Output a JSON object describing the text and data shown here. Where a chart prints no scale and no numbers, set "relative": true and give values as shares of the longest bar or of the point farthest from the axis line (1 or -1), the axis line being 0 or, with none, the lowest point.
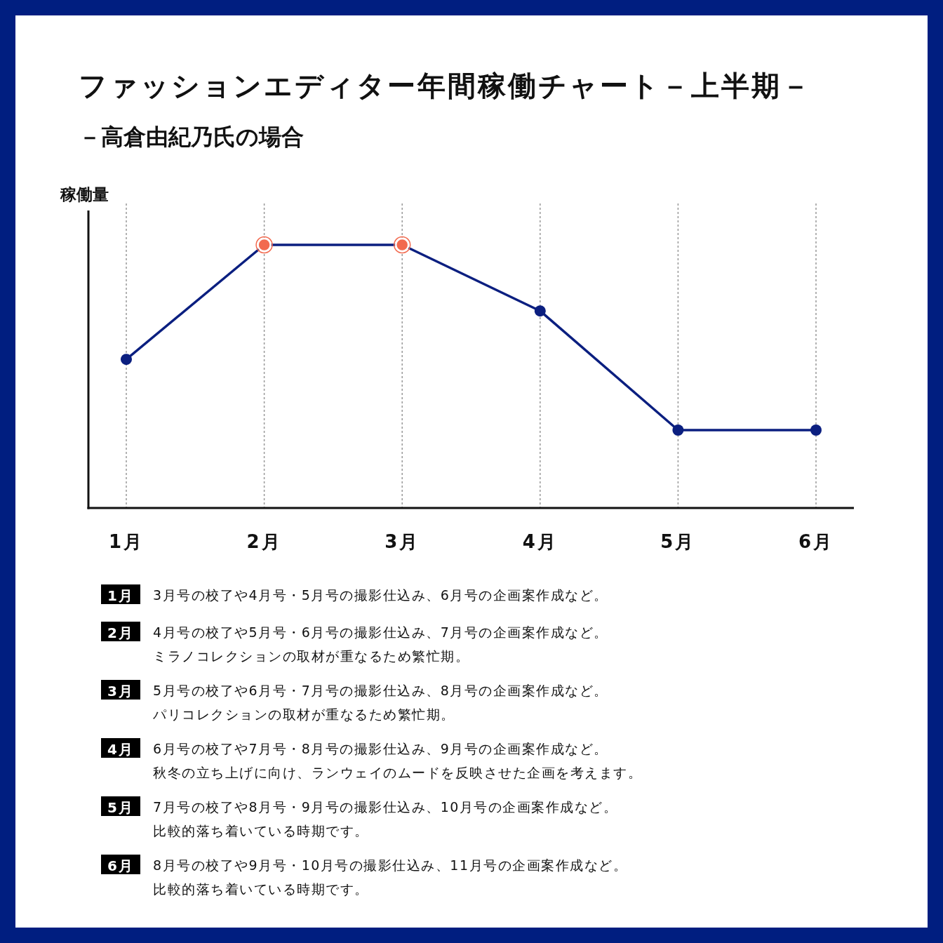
{
  "chart_data": {
    "type": "line",
    "title": "ファッションエディター年間稼働チャート－上半期－",
    "subtitle": "－高倉由紀乃氏の場合",
    "ylabel": "稼働量",
    "categories": [
      "1月",
      "2月",
      "3月",
      "4月",
      "5月",
      "6月"
    ],
    "relative": true,
    "marker": "circle",
    "line_style": "solid",
    "grid": "x",
    "series": [
      {
        "color": "#0b1f80",
        "values": [
          0.565,
          1,
          1,
          0.749,
          0.296,
          0.296
        ],
        "colors": [
          "#0b1f80",
          "#f26a4f",
          "#f26a4f",
          "#0b1f80",
          "#0b1f80",
          "#0b1f80"
        ]
      }
    ],
    "annotations": [
      "3月号の校了や4月号・5月号の撮影仕込み、6月号の企画案作成など。",
      "4月号の校了や5月号・6月号の撮影仕込み、7月号の企画案作成など。ミラノコレクションの取材が重なるため繁忙期。",
      "5月号の校了や6月号・7月号の撮影仕込み、8月号の企画案作成など。パリコレクションの取材が重なるため繁忙期。",
      "6月号の校了や7月号・8月号の撮影仕込み、9月号の企画案作成など。秋冬の立ち上げに向け、ランウェイのムードを反映させた企画を考えます。",
      "7月号の校了や8月号・9月号の撮影仕込み、10月号の企画案作成など。比較的落ち着いている時期です。",
      "8月号の校了や9月号・10月号の撮影仕込み、11月号の企画案作成など。比較的落ち着いている時期です。"
    ]
  }
}
